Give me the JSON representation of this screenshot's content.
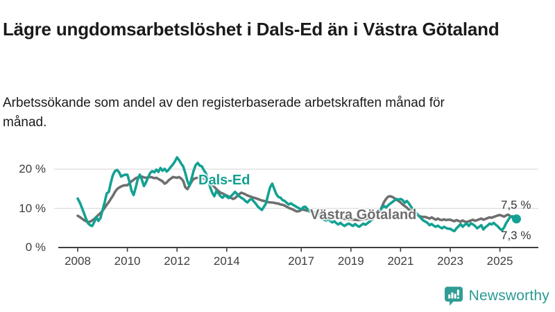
{
  "header": {
    "title": "Lägre ungdomsarbetslöshet i Dals-Ed än i Västra Götaland",
    "subtitle": "Arbetssökande som andel av den registerbaserade arbetskraften månad för månad."
  },
  "footer": {
    "brand": "Newsworthy",
    "logo_icon": "bar-chart-speech-bubble-icon",
    "brand_color": "#2f9d96"
  },
  "chart_data": {
    "type": "line",
    "unit": "%",
    "frequency": "monthly",
    "grid": "horizontal",
    "ylim": [
      0,
      24
    ],
    "x_range_years": [
      2008,
      2025.75
    ],
    "x_ticks": [
      "2008",
      "2010",
      "2012",
      "2014",
      "2017",
      "2019",
      "2021",
      "2023",
      "2025"
    ],
    "x_tick_years": [
      2008,
      2010,
      2012,
      2014,
      2017,
      2019,
      2021,
      2023,
      2025
    ],
    "y_ticks": [
      {
        "label": "20 %",
        "value": 20
      },
      {
        "label": "10 %",
        "value": 10
      },
      {
        "label": "0 %",
        "value": 0
      }
    ],
    "y_gridlines": [
      20,
      10
    ],
    "colors": {
      "accent_teal": "#12a192",
      "gray": "#6e6e6e",
      "gridline": "#dcdcdc",
      "axis": "#3f3f3f"
    },
    "series": [
      {
        "name": "Dals-Ed",
        "color": "#12a192",
        "start_year": 2008,
        "start_month": 1,
        "end_label": "7,3 %",
        "end_value": 7.3,
        "has_end_dot": true,
        "values": [
          12.5,
          11.5,
          10.2,
          8.8,
          7.4,
          6.2,
          5.7,
          5.5,
          6.5,
          7.8,
          6.8,
          7.5,
          9.5,
          11.5,
          13.8,
          14.2,
          16.5,
          18.5,
          19.5,
          19.8,
          19.2,
          18.1,
          18.4,
          18.6,
          18.6,
          16.8,
          14.5,
          13.4,
          15.2,
          17.4,
          18.6,
          17.3,
          15.7,
          16.6,
          17.9,
          19.0,
          19.5,
          19.2,
          19.9,
          19.3,
          20.3,
          19.6,
          20.1,
          19.4,
          19.9,
          20.6,
          21.2,
          22.0,
          23.0,
          22.3,
          21.4,
          20.7,
          19.0,
          17.0,
          15.7,
          17.6,
          19.6,
          21.0,
          21.6,
          20.9,
          20.7,
          19.7,
          18.9,
          17.4,
          15.4,
          14.0,
          13.1,
          14.4,
          13.8,
          13.1,
          12.7,
          13.3,
          13.0,
          12.6,
          13.1,
          13.6,
          14.2,
          13.7,
          13.1,
          12.7,
          12.4,
          11.9,
          11.5,
          12.1,
          12.4,
          11.8,
          11.2,
          10.5,
          10.0,
          9.6,
          10.4,
          11.3,
          13.5,
          15.4,
          16.3,
          14.9,
          13.6,
          12.9,
          12.7,
          12.1,
          11.9,
          11.4,
          11.0,
          11.3,
          10.9,
          10.6,
          10.3,
          10.0,
          9.7,
          10.3,
          10.4,
          9.8,
          9.2,
          9.5,
          8.8,
          8.3,
          8.6,
          7.9,
          7.4,
          7.1,
          6.9,
          7.2,
          6.8,
          6.4,
          6.7,
          6.2,
          5.9,
          6.3,
          5.8,
          5.5,
          5.9,
          6.1,
          5.8,
          5.5,
          6.0,
          5.6,
          5.3,
          5.7,
          6.1,
          5.8,
          6.2,
          6.6,
          7.0,
          7.4,
          8.0,
          8.6,
          9.3,
          10.1,
          10.6,
          10.2,
          10.8,
          11.2,
          11.6,
          12.0,
          12.4,
          12.2,
          12.4,
          12.1,
          11.4,
          11.9,
          11.3,
          10.5,
          9.7,
          9.2,
          8.6,
          8.0,
          7.4,
          6.9,
          6.6,
          6.3,
          5.7,
          6.0,
          5.6,
          5.3,
          5.6,
          5.2,
          4.9,
          5.3,
          5.0,
          4.8,
          4.8,
          4.4,
          4.2,
          4.9,
          5.4,
          6.0,
          5.3,
          5.8,
          6.1,
          5.5,
          6.2,
          5.9,
          5.5,
          4.9,
          5.3,
          5.7,
          4.6,
          5.2,
          5.6,
          6.1,
          5.9,
          6.3,
          5.8,
          5.4,
          4.8,
          4.4,
          5.1,
          6.2,
          7.0,
          7.8,
          8.0,
          7.5,
          7.3
        ]
      },
      {
        "name": "Västra Götaland",
        "color": "#6e6e6e",
        "start_year": 2008,
        "start_month": 1,
        "end_label": "7,5 %",
        "end_value": 7.5,
        "has_end_dot": false,
        "values": [
          8.1,
          7.8,
          7.4,
          7.0,
          6.7,
          6.5,
          6.6,
          6.9,
          7.3,
          7.8,
          8.3,
          8.8,
          9.4,
          10.1,
          10.9,
          11.6,
          12.4,
          13.2,
          14.2,
          14.9,
          15.3,
          15.6,
          15.8,
          15.9,
          15.9,
          16.4,
          16.9,
          17.3,
          17.7,
          17.9,
          18.0,
          18.1,
          17.9,
          17.8,
          17.9,
          18.0,
          17.9,
          17.7,
          17.8,
          17.5,
          17.2,
          16.9,
          16.3,
          16.6,
          17.2,
          17.6,
          18.0,
          17.9,
          17.8,
          18.0,
          17.6,
          17.0,
          15.4,
          14.9,
          15.8,
          16.8,
          17.5,
          17.7,
          17.8,
          17.6,
          17.8,
          17.5,
          17.2,
          16.8,
          16.3,
          16.0,
          15.5,
          14.9,
          14.4,
          14.0,
          13.8,
          13.5,
          13.3,
          13.0,
          12.7,
          12.4,
          12.6,
          13.1,
          13.6,
          14.0,
          13.8,
          13.6,
          13.3,
          13.1,
          12.9,
          12.7,
          12.6,
          12.4,
          12.2,
          12.0,
          11.9,
          11.8,
          11.6,
          11.5,
          11.5,
          11.4,
          11.3,
          11.2,
          11.0,
          10.9,
          10.7,
          10.4,
          10.1,
          9.9,
          9.7,
          9.4,
          9.2,
          9.3,
          9.6,
          9.7,
          9.5,
          9.4,
          9.3,
          9.2,
          9.0,
          8.8,
          8.7,
          8.6,
          8.4,
          8.3,
          8.2,
          8.1,
          8.0,
          7.9,
          7.8,
          7.7,
          7.6,
          7.5,
          7.4,
          7.3,
          7.3,
          7.2,
          7.2,
          7.1,
          7.1,
          7.0,
          7.0,
          7.1,
          7.2,
          7.3,
          7.4,
          7.5,
          7.6,
          7.8,
          8.2,
          8.5,
          9.2,
          10.4,
          11.6,
          12.4,
          13.0,
          13.1,
          12.9,
          12.6,
          12.2,
          11.9,
          11.5,
          11.0,
          10.6,
          10.2,
          9.7,
          9.3,
          8.9,
          8.6,
          8.3,
          8.0,
          7.9,
          7.8,
          7.8,
          7.6,
          7.4,
          7.7,
          7.4,
          7.1,
          7.4,
          7.1,
          7.0,
          7.2,
          7.0,
          7.1,
          7.1,
          6.9,
          6.7,
          7.0,
          6.8,
          6.6,
          6.9,
          6.6,
          6.5,
          6.7,
          6.9,
          7.1,
          6.8,
          7.0,
          7.2,
          7.4,
          7.1,
          7.3,
          7.5,
          7.7,
          7.6,
          7.8,
          8.0,
          8.2,
          8.3,
          8.1,
          7.9,
          8.2,
          8.4,
          8.0,
          7.7,
          7.6,
          7.5
        ]
      }
    ]
  }
}
